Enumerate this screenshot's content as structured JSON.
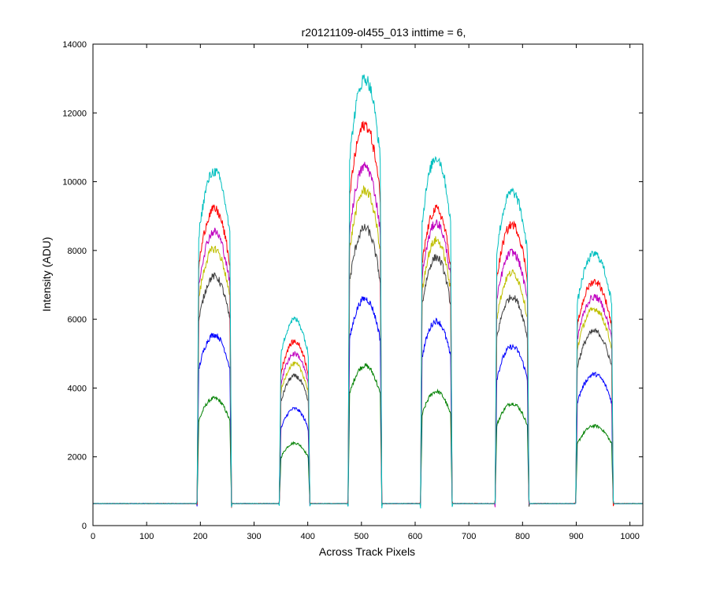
{
  "chart_data": {
    "type": "line",
    "title": "r20121109-ol455_013 inttime = 6,",
    "xlabel": "Across Track Pixels",
    "ylabel": "Intensity (ADU)",
    "xlim": [
      0,
      1024
    ],
    "ylim": [
      0,
      14000
    ],
    "xticks": [
      0,
      100,
      200,
      300,
      400,
      500,
      600,
      700,
      800,
      900,
      1000
    ],
    "yticks": [
      0,
      2000,
      4000,
      6000,
      8000,
      10000,
      12000,
      14000
    ],
    "grid": false,
    "baseline": 640,
    "segments": [
      {
        "start": 194,
        "end": 258
      },
      {
        "start": 347,
        "end": 404
      },
      {
        "start": 475,
        "end": 538
      },
      {
        "start": 610,
        "end": 669
      },
      {
        "start": 749,
        "end": 812
      },
      {
        "start": 899,
        "end": 969
      }
    ],
    "series": [
      {
        "color": "#008000",
        "peaks": [
          3700,
          2400,
          4650,
          3900,
          3550,
          2900
        ]
      },
      {
        "color": "#0000ff",
        "peaks": [
          5550,
          3400,
          6600,
          5950,
          5200,
          4400
        ]
      },
      {
        "color": "#404040",
        "peaks": [
          7250,
          4350,
          8650,
          7800,
          6650,
          5650
        ]
      },
      {
        "color": "#bfbf00",
        "peaks": [
          8050,
          4700,
          9750,
          8300,
          7350,
          6300
        ]
      },
      {
        "color": "#bf00bf",
        "peaks": [
          8550,
          5000,
          10450,
          8800,
          7950,
          6650
        ]
      },
      {
        "color": "#ff0000",
        "peaks": [
          9200,
          5350,
          11650,
          9200,
          8750,
          7100
        ]
      },
      {
        "color": "#00bfbf",
        "peaks": [
          10300,
          6000,
          13000,
          10700,
          9700,
          7900
        ]
      }
    ]
  }
}
